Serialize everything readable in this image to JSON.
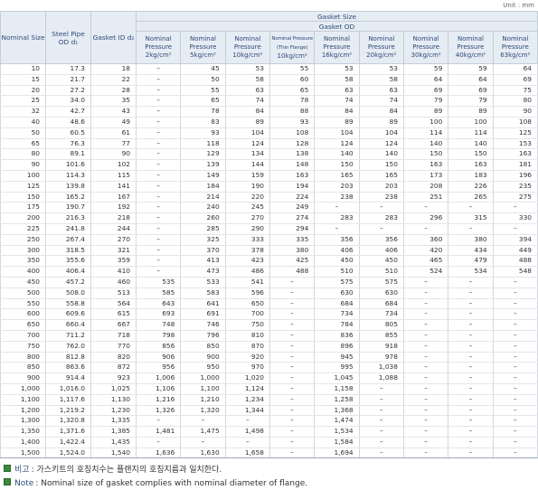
{
  "unit": "Unit : mm",
  "table": {
    "fixed_headers": [
      "Nominal Size",
      "Steel Pipe OD d₁",
      "Gasket ID d₂"
    ],
    "group_header": "Gasket Size",
    "sub_header": "Gasket OD",
    "pressure_headers": [
      {
        "label": "Nominal Pressure",
        "unit": "2kg/cm²"
      },
      {
        "label": "Nominal Pressure",
        "unit": "5kg/cm²"
      },
      {
        "label": "Nominal Pressure",
        "unit": "10kg/cm²"
      },
      {
        "label": "Nominal Pressure (Thin Flange)",
        "unit": "10kg/cm²"
      },
      {
        "label": "Nominal Pressure",
        "unit": "16kg/cm²"
      },
      {
        "label": "Nominal Pressure",
        "unit": "20kg/cm²"
      },
      {
        "label": "Nominal Pressure",
        "unit": "30kg/cm²"
      },
      {
        "label": "Nominal Pressure",
        "unit": "40kg/cm²"
      },
      {
        "label": "Nominal Pressure",
        "unit": "63kg/cm²"
      }
    ],
    "rows": [
      [
        "10",
        "17.3",
        "18",
        "–",
        "45",
        "53",
        "55",
        "53",
        "53",
        "59",
        "59",
        "64"
      ],
      [
        "15",
        "21.7",
        "22",
        "–",
        "50",
        "58",
        "60",
        "58",
        "58",
        "64",
        "64",
        "69"
      ],
      [
        "20",
        "27.2",
        "28",
        "–",
        "55",
        "63",
        "65",
        "63",
        "63",
        "69",
        "69",
        "75"
      ],
      [
        "25",
        "34.0",
        "35",
        "–",
        "65",
        "74",
        "78",
        "74",
        "74",
        "79",
        "79",
        "80"
      ],
      [
        "32",
        "42.7",
        "43",
        "–",
        "78",
        "84",
        "88",
        "84",
        "84",
        "89",
        "89",
        "90"
      ],
      [
        "40",
        "48.6",
        "49",
        "–",
        "83",
        "89",
        "93",
        "89",
        "89",
        "100",
        "100",
        "108"
      ],
      [
        "50",
        "60.5",
        "61",
        "–",
        "93",
        "104",
        "108",
        "104",
        "104",
        "114",
        "114",
        "125"
      ],
      [
        "65",
        "76.3",
        "77",
        "–",
        "118",
        "124",
        "128",
        "124",
        "124",
        "140",
        "140",
        "153"
      ],
      [
        "80",
        "89.1",
        "90",
        "–",
        "129",
        "134",
        "138",
        "140",
        "140",
        "150",
        "150",
        "163"
      ],
      [
        "90",
        "101.6",
        "102",
        "–",
        "139",
        "144",
        "148",
        "150",
        "150",
        "163",
        "163",
        "181"
      ],
      [
        "100",
        "114.3",
        "115",
        "–",
        "149",
        "159",
        "163",
        "165",
        "165",
        "173",
        "183",
        "196"
      ],
      [
        "125",
        "139.8",
        "141",
        "–",
        "184",
        "190",
        "194",
        "203",
        "203",
        "208",
        "226",
        "235"
      ],
      [
        "150",
        "165.2",
        "167",
        "–",
        "214",
        "220",
        "224",
        "238",
        "238",
        "251",
        "265",
        "275"
      ],
      [
        "175",
        "190.7",
        "192",
        "–",
        "240",
        "245",
        "249",
        "–",
        "–",
        "–",
        "–",
        "–"
      ],
      [
        "200",
        "216.3",
        "218",
        "–",
        "260",
        "270",
        "274",
        "283",
        "283",
        "296",
        "315",
        "330"
      ],
      [
        "225",
        "241.8",
        "244",
        "–",
        "285",
        "290",
        "294",
        "–",
        "–",
        "–",
        "–",
        "–"
      ],
      [
        "250",
        "267.4",
        "270",
        "–",
        "325",
        "333",
        "335",
        "356",
        "356",
        "360",
        "380",
        "394"
      ],
      [
        "300",
        "318.5",
        "321",
        "–",
        "370",
        "378",
        "380",
        "406",
        "406",
        "420",
        "434",
        "449"
      ],
      [
        "350",
        "355.6",
        "359",
        "–",
        "413",
        "423",
        "425",
        "450",
        "450",
        "465",
        "479",
        "488"
      ],
      [
        "400",
        "406.4",
        "410",
        "–",
        "473",
        "486",
        "488",
        "510",
        "510",
        "524",
        "534",
        "548"
      ],
      [
        "450",
        "457.2",
        "460",
        "535",
        "533",
        "541",
        "–",
        "575",
        "575",
        "–",
        "–",
        "–"
      ],
      [
        "500",
        "508.0",
        "513",
        "585",
        "583",
        "596",
        "–",
        "630",
        "630",
        "–",
        "–",
        "–"
      ],
      [
        "550",
        "558.8",
        "564",
        "643",
        "641",
        "650",
        "–",
        "684",
        "684",
        "–",
        "–",
        "–"
      ],
      [
        "600",
        "609.6",
        "615",
        "693",
        "691",
        "700",
        "–",
        "734",
        "734",
        "–",
        "–",
        "–"
      ],
      [
        "650",
        "660.4",
        "667",
        "748",
        "746",
        "750",
        "–",
        "784",
        "805",
        "–",
        "–",
        "–"
      ],
      [
        "700",
        "711.2",
        "718",
        "798",
        "796",
        "810",
        "–",
        "836",
        "855",
        "–",
        "–",
        "–"
      ],
      [
        "750",
        "762.0",
        "770",
        "856",
        "850",
        "870",
        "–",
        "896",
        "918",
        "–",
        "–",
        "–"
      ],
      [
        "800",
        "812.8",
        "820",
        "906",
        "900",
        "920",
        "–",
        "945",
        "978",
        "–",
        "–",
        "–"
      ],
      [
        "850",
        "863.6",
        "872",
        "956",
        "950",
        "970",
        "–",
        "995",
        "1,038",
        "–",
        "–",
        "–"
      ],
      [
        "900",
        "914.4",
        "923",
        "1,006",
        "1,000",
        "1,020",
        "–",
        "1,045",
        "1,088",
        "–",
        "–",
        "–"
      ],
      [
        "1,000",
        "1,016.0",
        "1,025",
        "1,106",
        "1,100",
        "1,124",
        "–",
        "1,158",
        "–",
        "–",
        "–",
        "–"
      ],
      [
        "1,100",
        "1,117.6",
        "1,130",
        "1,216",
        "1,210",
        "1,234",
        "–",
        "1,258",
        "–",
        "–",
        "–",
        "–"
      ],
      [
        "1,200",
        "1,219.2",
        "1,230",
        "1,326",
        "1,320",
        "1,344",
        "–",
        "1,368",
        "–",
        "–",
        "–",
        "–"
      ],
      [
        "1,300",
        "1,320.8",
        "1,335",
        "–",
        "–",
        "–",
        "–",
        "1,474",
        "–",
        "–",
        "–",
        "–"
      ],
      [
        "1,350",
        "1,371.6",
        "1,385",
        "1,481",
        "1,475",
        "1,498",
        "–",
        "1,534",
        "–",
        "–",
        "–",
        "–"
      ],
      [
        "1,400",
        "1,422.4",
        "1,435",
        "–",
        "–",
        "–",
        "–",
        "1,584",
        "–",
        "–",
        "–",
        "–"
      ],
      [
        "1,500",
        "1,524.0",
        "1,540",
        "1,636",
        "1,630",
        "1,658",
        "–",
        "1,694",
        "–",
        "–",
        "–",
        "–"
      ]
    ]
  },
  "notes": [
    {
      "label": "비고",
      "text": ": 가스키트의 호칭치수는 플랜지의 호칭지름과 일치한다."
    },
    {
      "label": "Note",
      "text": ": Nominal size of gasket complies with nominal diameter of flange."
    }
  ]
}
